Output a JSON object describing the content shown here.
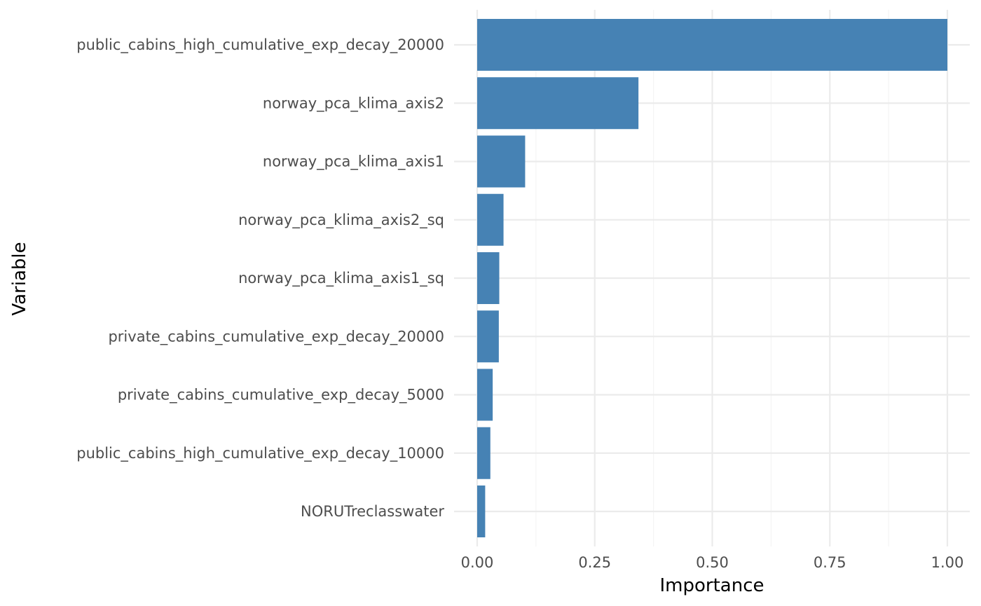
{
  "chart_data": {
    "type": "bar",
    "orientation": "horizontal",
    "xlabel": "Importance",
    "ylabel": "Variable",
    "xlim": [
      0,
      1
    ],
    "x_ticks": [
      0,
      0.25,
      0.5,
      0.75,
      1
    ],
    "x_tick_labels": [
      "0.00",
      "0.25",
      "0.50",
      "0.75",
      "1.00"
    ],
    "categories": [
      "public_cabins_high_cumulative_exp_decay_20000",
      "norway_pca_klima_axis2",
      "norway_pca_klima_axis1",
      "norway_pca_klima_axis2_sq",
      "norway_pca_klima_axis1_sq",
      "private_cabins_cumulative_exp_decay_20000",
      "private_cabins_cumulative_exp_decay_5000",
      "public_cabins_high_cumulative_exp_decay_10000",
      "NORUTreclasswater"
    ],
    "values": [
      1.0,
      0.343,
      0.102,
      0.056,
      0.047,
      0.046,
      0.033,
      0.028,
      0.017
    ],
    "bar_color": "#4682b4",
    "grid": true,
    "legend": "none"
  }
}
